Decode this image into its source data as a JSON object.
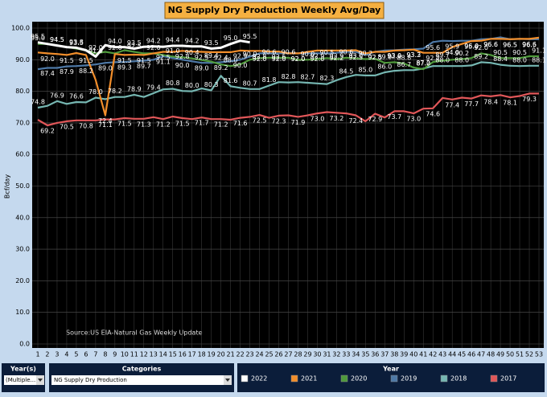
{
  "chart_data": {
    "type": "line",
    "title": "NG Supply Dry Production Weekly Avg/Day",
    "y_label": "Bcf/day",
    "annotation": "Source:US EIA-Natural Gas Weekly Update",
    "legend_title": "Year",
    "categories": [
      "1",
      "2",
      "3",
      "4",
      "5",
      "6",
      "7",
      "8",
      "9",
      "10",
      "11",
      "12",
      "13",
      "14",
      "15",
      "16",
      "17",
      "18",
      "19",
      "20",
      "21",
      "22",
      "23",
      "24",
      "25",
      "26",
      "27",
      "28",
      "29",
      "30",
      "31",
      "32",
      "33",
      "34",
      "35",
      "36",
      "37",
      "38",
      "39",
      "40",
      "41",
      "42",
      "43",
      "44",
      "45",
      "46",
      "47",
      "48",
      "49",
      "50",
      "51",
      "52",
      "53"
    ],
    "ylim": [
      0,
      100
    ],
    "yticks": [
      {
        "value": 0,
        "label": "0.0"
      },
      {
        "value": 10,
        "label": "10.0"
      },
      {
        "value": 20,
        "label": "20.0"
      },
      {
        "value": 30,
        "label": "30.0"
      },
      {
        "value": 40,
        "label": "40.0"
      },
      {
        "value": 50,
        "label": "50.0"
      },
      {
        "value": 60,
        "label": "60.0"
      },
      {
        "value": 70,
        "label": "70.0"
      },
      {
        "value": 80,
        "label": "80.0"
      },
      {
        "value": 90,
        "label": "90.0"
      },
      {
        "value": 100,
        "label": "100.0"
      }
    ],
    "grid": true,
    "series": [
      {
        "name": "2022",
        "color": "#ffffff",
        "values": [
          95.5,
          95.0,
          94.5,
          94.0,
          93.8,
          93.0,
          91.0,
          94.6,
          94.0,
          94.0,
          93.5,
          94.1,
          94.2,
          94.1,
          94.4,
          94.4,
          94.2,
          94.2,
          93.5,
          93.8,
          95.0,
          96.0,
          95.5,
          null,
          null,
          null,
          null,
          null,
          null,
          null,
          null,
          null,
          null,
          null,
          null,
          null,
          null,
          null,
          null,
          null,
          null,
          null,
          null,
          null,
          null,
          null,
          null,
          null,
          null,
          null,
          null,
          null,
          null
        ],
        "value_labels": [
          "95.5",
          null,
          "94.5",
          null,
          "93.8",
          null,
          "91.0",
          null,
          "94.0",
          null,
          "93.5",
          null,
          "94.2",
          null,
          "94.4",
          null,
          "94.2",
          null,
          "93.5",
          null,
          "95.0",
          null,
          "95.5",
          null,
          null,
          null,
          null,
          null,
          null,
          null,
          null,
          null,
          null,
          null,
          null,
          null,
          null,
          null,
          null,
          null,
          null,
          null,
          null,
          null,
          null,
          null,
          null,
          null,
          null,
          null,
          null,
          null,
          null
        ]
      },
      {
        "name": "2021",
        "color": "#f28e2b",
        "values": [
          92.3,
          92.0,
          91.8,
          91.5,
          92.1,
          91.5,
          83.6,
          72.4,
          91.8,
          91.5,
          91.6,
          91.5,
          92.0,
          92.5,
          92.5,
          92.8,
          92.6,
          92.5,
          92.4,
          92.4,
          92.4,
          92.9,
          92.8,
          92.8,
          92.6,
          92.6,
          92.0,
          92.0,
          92.5,
          92.9,
          92.9,
          92.9,
          92.9,
          93.0,
          92.0,
          92.5,
          92.5,
          92.9,
          93.0,
          93.2,
          92.2,
          92.2,
          92.2,
          94.0,
          95.0,
          95.9,
          96.0,
          96.6,
          96.6,
          96.5,
          96.6,
          96.6,
          97.0
        ],
        "value_labels": [
          null,
          "92.0",
          null,
          "91.5",
          null,
          "91.5",
          null,
          "72.4",
          null,
          "91.5",
          null,
          "91.5",
          null,
          "92.5",
          null,
          "92.8",
          null,
          "92.5",
          null,
          "92.4",
          null,
          "92.9",
          null,
          "92.8",
          null,
          "92.6",
          null,
          "92.0",
          null,
          "92.9",
          null,
          "92.9",
          null,
          "93.0",
          null,
          "92.5",
          null,
          "92.9",
          null,
          "93.2",
          null,
          "92.2",
          null,
          "94.0",
          null,
          "95.9",
          null,
          "96.6",
          null,
          "96.5",
          null,
          "96.6",
          null
        ]
      },
      {
        "name": "2020",
        "color": "#4f9a3c",
        "values": [
          95.0,
          95.0,
          94.5,
          94.0,
          93.5,
          93.0,
          92.0,
          92.5,
          92.0,
          93.0,
          92.5,
          92.0,
          92.0,
          91.5,
          91.0,
          90.8,
          90.4,
          89.9,
          89.4,
          88.5,
          88.0,
          88.5,
          90.0,
          90.5,
          90.6,
          90.6,
          90.6,
          90.0,
          90.0,
          90.2,
          90.5,
          90.2,
          90.6,
          90.4,
          90.2,
          90.3,
          89.0,
          89.2,
          88.8,
          87.5,
          87.0,
          89.3,
          89.7,
          90.0,
          90.2,
          90.5,
          92.0,
          91.5,
          90.5,
          90.5,
          90.5,
          91.1,
          91.1
        ],
        "value_labels": [
          "95.0",
          null,
          "94.5",
          null,
          "93.5",
          null,
          "92.0",
          null,
          "92.0",
          null,
          "92.5",
          null,
          "92.0",
          null,
          "91.0",
          null,
          "90.4",
          null,
          "89.4",
          null,
          "88.0",
          null,
          "90.0",
          null,
          "90.6",
          null,
          "90.6",
          null,
          "90.0",
          null,
          "90.5",
          null,
          "90.6",
          null,
          "90.2",
          null,
          "89.0",
          null,
          "88.8",
          null,
          "87.0",
          null,
          "89.7",
          null,
          "90.2",
          null,
          "92.0",
          null,
          "90.5",
          null,
          "90.5",
          null,
          "91.1"
        ]
      },
      {
        "name": "2019",
        "color": "#4e79a7",
        "values": [
          87.0,
          87.4,
          87.4,
          87.9,
          88.0,
          88.2,
          88.5,
          89.0,
          89.2,
          89.3,
          89.5,
          89.7,
          90.0,
          91.1,
          90.5,
          90.0,
          89.5,
          89.0,
          89.0,
          89.2,
          89.5,
          90.0,
          91.0,
          92.0,
          92.0,
          92.0,
          92.2,
          92.0,
          92.0,
          92.0,
          92.0,
          92.2,
          92.5,
          92.5,
          91.5,
          92.5,
          92.9,
          93.0,
          93.2,
          93.3,
          93.5,
          95.6,
          96.0,
          95.9,
          96.0,
          96.0,
          96.5,
          96.6,
          97.1,
          96.5,
          96.6,
          96.5,
          96.5
        ],
        "value_labels": [
          null,
          "87.4",
          null,
          "87.9",
          null,
          "88.2",
          null,
          "89.0",
          null,
          "89.3",
          null,
          "89.7",
          null,
          "91.1",
          null,
          "90.0",
          null,
          "89.0",
          null,
          "89.2",
          null,
          "90.0",
          null,
          "92.0",
          null,
          "92.0",
          null,
          "92.0",
          null,
          "92.0",
          null,
          "92.2",
          null,
          "92.5",
          null,
          "92.5",
          null,
          "93.0",
          null,
          "93.3",
          null,
          "95.6",
          null,
          "95.9",
          null,
          "96.0",
          null,
          "96.6",
          null,
          "96.5",
          null,
          "96.5",
          null
        ]
      },
      {
        "name": "2018",
        "color": "#76b7b2",
        "values": [
          74.8,
          75.4,
          76.9,
          76.0,
          76.6,
          76.5,
          78.0,
          77.5,
          78.2,
          78.2,
          78.9,
          78.2,
          79.4,
          80.6,
          80.8,
          80.1,
          80.0,
          80.9,
          80.3,
          84.9,
          81.6,
          81.1,
          80.7,
          80.7,
          81.8,
          82.9,
          82.8,
          82.9,
          82.7,
          82.5,
          82.3,
          83.5,
          84.5,
          85.2,
          85.0,
          85.0,
          86.0,
          86.5,
          86.7,
          86.7,
          87.2,
          88.0,
          88.0,
          88.0,
          88.0,
          88.2,
          89.2,
          89.0,
          88.4,
          88.1,
          88.0,
          88.1,
          88.1
        ],
        "value_labels": [
          "74.8",
          null,
          "76.9",
          null,
          "76.6",
          null,
          "78.0",
          null,
          "78.2",
          null,
          "78.9",
          null,
          "79.4",
          null,
          "80.8",
          null,
          "80.0",
          null,
          "80.3",
          null,
          "81.6",
          null,
          "80.7",
          null,
          "81.8",
          null,
          "82.8",
          null,
          "82.7",
          null,
          "82.3",
          null,
          "84.5",
          null,
          "85.0",
          null,
          "86.0",
          null,
          "86.7",
          null,
          "87.2",
          null,
          "88.0",
          null,
          "88.0",
          null,
          "89.2",
          null,
          "88.4",
          null,
          "88.0",
          null,
          "88.1"
        ]
      },
      {
        "name": "2017",
        "color": "#e15759",
        "values": [
          71.0,
          69.2,
          70.0,
          70.5,
          70.8,
          70.8,
          70.8,
          71.1,
          71.1,
          71.5,
          71.3,
          71.3,
          71.8,
          71.2,
          72.0,
          71.5,
          71.2,
          71.7,
          71.2,
          71.2,
          71.0,
          71.6,
          71.9,
          72.5,
          71.6,
          72.3,
          72.4,
          71.9,
          72.4,
          73.0,
          73.4,
          73.2,
          73.0,
          72.4,
          70.5,
          72.9,
          71.7,
          73.7,
          73.7,
          73.0,
          74.5,
          74.6,
          77.9,
          77.4,
          78.0,
          77.7,
          78.7,
          78.4,
          78.8,
          78.1,
          78.5,
          79.3,
          79.3
        ],
        "value_labels": [
          null,
          "69.2",
          null,
          "70.5",
          null,
          "70.8",
          null,
          "71.1",
          null,
          "71.5",
          null,
          "71.3",
          null,
          "71.2",
          null,
          "71.5",
          null,
          "71.7",
          null,
          "71.2",
          null,
          "71.6",
          null,
          "72.5",
          null,
          "72.3",
          null,
          "71.9",
          null,
          "73.0",
          null,
          "73.2",
          null,
          "72.4",
          null,
          "72.9",
          null,
          "73.7",
          null,
          "73.0",
          null,
          "74.6",
          null,
          "77.4",
          null,
          "77.7",
          null,
          "78.4",
          null,
          "78.1",
          null,
          "79.3",
          null
        ]
      }
    ]
  },
  "controls": {
    "year": {
      "label": "Year(s)",
      "value": "(Multiple..."
    },
    "categories": {
      "label": "Categories",
      "value": "NG Supply Dry Production"
    }
  }
}
